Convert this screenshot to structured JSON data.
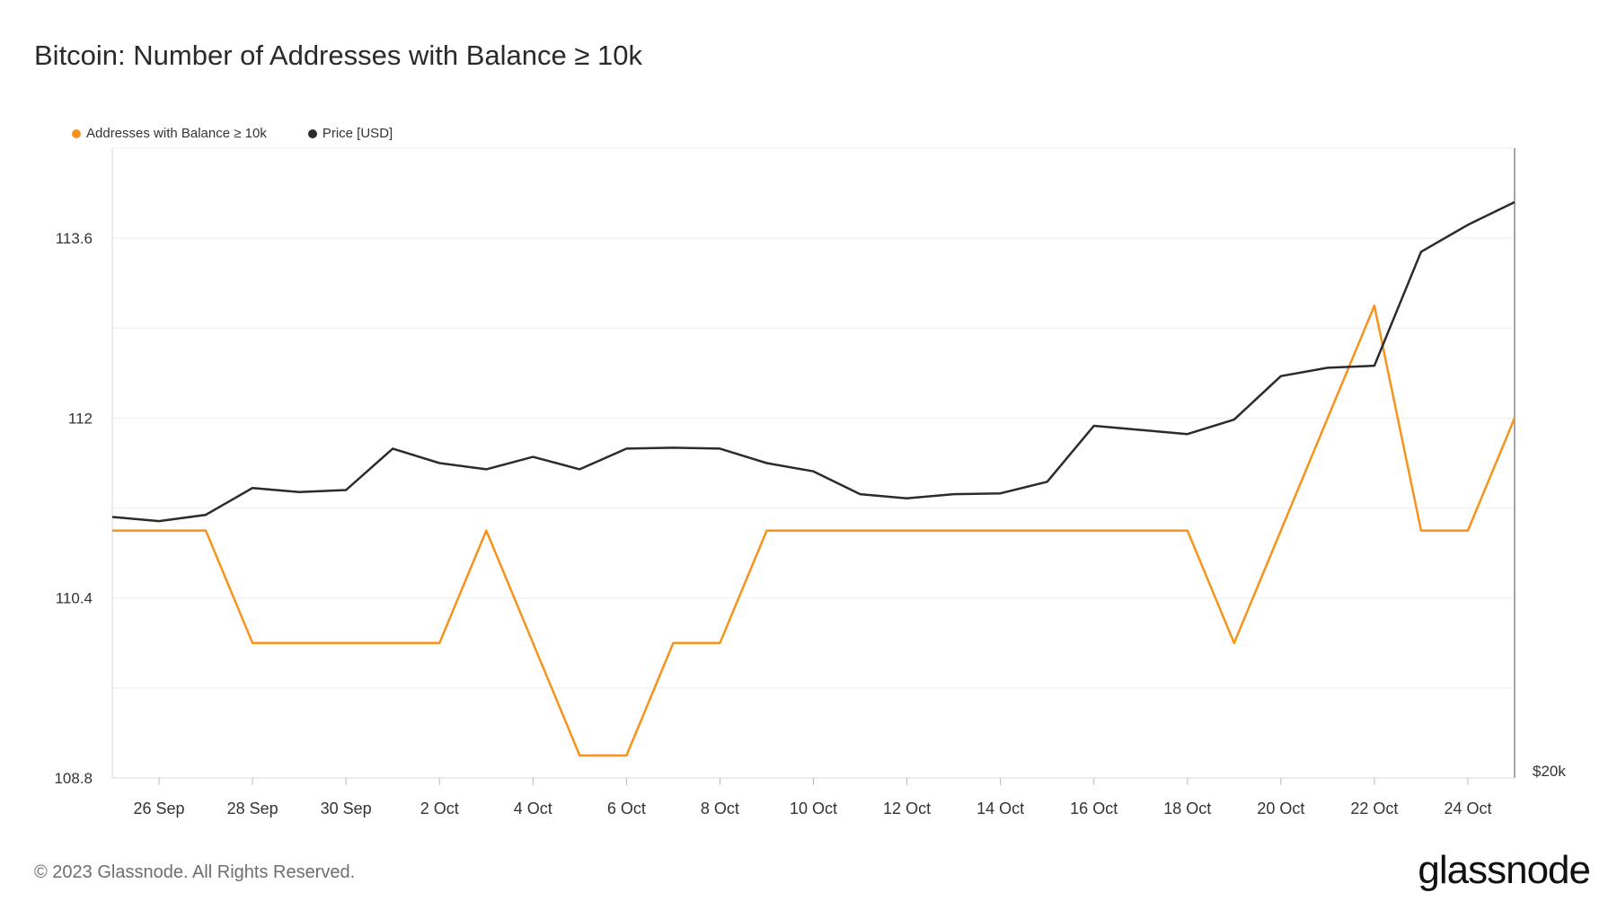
{
  "title": "Bitcoin: Number of Addresses with Balance ≥ 10k",
  "footer": "© 2023 Glassnode. All Rights Reserved.",
  "brand": "glassnode",
  "chart_data": {
    "type": "line",
    "title": "Bitcoin: Number of Addresses with Balance ≥ 10k",
    "x": [
      "25 Sep",
      "26 Sep",
      "27 Sep",
      "28 Sep",
      "29 Sep",
      "30 Sep",
      "1 Oct",
      "2 Oct",
      "3 Oct",
      "4 Oct",
      "5 Oct",
      "6 Oct",
      "7 Oct",
      "8 Oct",
      "9 Oct",
      "10 Oct",
      "11 Oct",
      "12 Oct",
      "13 Oct",
      "14 Oct",
      "15 Oct",
      "16 Oct",
      "17 Oct",
      "18 Oct",
      "19 Oct",
      "20 Oct",
      "21 Oct",
      "22 Oct",
      "23 Oct",
      "24 Oct",
      "25 Oct"
    ],
    "x_ticks": [
      "26 Sep",
      "28 Sep",
      "30 Sep",
      "2 Oct",
      "4 Oct",
      "6 Oct",
      "8 Oct",
      "10 Oct",
      "12 Oct",
      "14 Oct",
      "16 Oct",
      "18 Oct",
      "20 Oct",
      "22 Oct",
      "24 Oct"
    ],
    "y_ticks": [
      "113.6",
      "112",
      "110.4",
      "108.8"
    ],
    "ylim": [
      108.8,
      114.4
    ],
    "y_right_tick": "$20k",
    "grid": true,
    "legend_position": "top-left",
    "series": [
      {
        "name": "Addresses with Balance ≥ 10k",
        "color": "#f7931a",
        "axis": "left",
        "values": [
          111,
          111,
          111,
          110,
          110,
          110,
          110,
          110,
          111,
          110,
          109,
          109,
          110,
          110,
          111,
          111,
          111,
          111,
          111,
          111,
          111,
          111,
          111,
          111,
          110,
          111,
          112,
          113,
          111,
          111,
          112
        ]
      },
      {
        "name": "Price [USD]",
        "color": "#2b2b2b",
        "axis": "right",
        "values": [
          26300,
          26200,
          26350,
          27000,
          26900,
          26950,
          27950,
          27600,
          27450,
          27750,
          27450,
          27950,
          27970,
          27950,
          27600,
          27400,
          26850,
          26750,
          26850,
          26870,
          27150,
          28500,
          28400,
          28300,
          28650,
          29700,
          29900,
          29950,
          32700,
          33350,
          33900
        ]
      }
    ]
  }
}
